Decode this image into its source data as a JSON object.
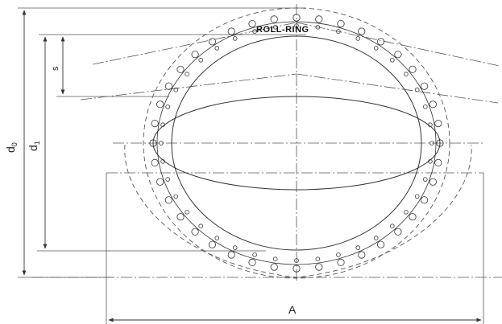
{
  "ring_label": "ROLL-RING",
  "dimensions": {
    "d0": {
      "symbol": "d",
      "sub": "0"
    },
    "d1": {
      "symbol": "d",
      "sub": "1"
    },
    "s": {
      "symbol": "s"
    },
    "A": {
      "symbol": "A"
    }
  },
  "colors": {
    "line": "#333333",
    "centerline": "#555555"
  }
}
